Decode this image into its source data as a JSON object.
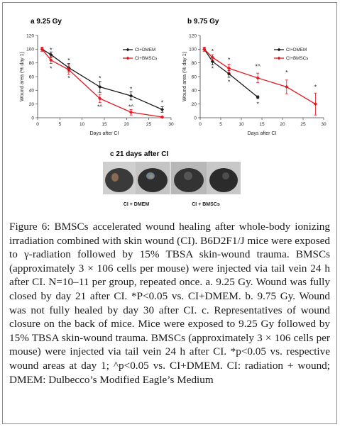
{
  "figure": {
    "caption_label": "Figure 6:",
    "caption_text": " BMSCs accelerated wound healing after whole-body ionizing irradiation combined with skin wound (CI). B6D2F1/J mice were exposed to γ-radiation followed by 15% TBSA skin-wound trauma. BMSCs (approximately 3 × 106 cells per mouse) were injected via tail vein 24 h after CI. N=10–11 per group, repeated once. a. 9.25 Gy. Wound was fully closed by day 21 after CI. *P<0.05 vs. CI+DMEM. b. 9.75 Gy. Wound was not fully healed by day 30 after CI. c. Representatives of wound closure on the back of mice. Mice were exposed to 9.25 Gy followed by 15% TBSA skin-wound trauma. BMSCs (approximately 3 × 106 cells per mouse) were injected via tail vein 24 h after CI. *p<0.05 vs. respective wound areas at day 1; ^p<0.05 vs. CI+DMEM. CI: radiation + wound; DMEM: Dulbecco’s Modified Eagle’s Medium"
  },
  "photo_panel": {
    "title": "c  21 days after CI",
    "label_left": "CI + DMEM",
    "label_right": "CI + BMSCs"
  },
  "colors": {
    "dmem": "#1a1a1a",
    "bmsc": "#e8141c"
  },
  "chart_data": [
    {
      "type": "line",
      "panel": "a",
      "title": "a  9.25 Gy",
      "xlabel": "Days after CI",
      "ylabel": "Wound area (% day 1)",
      "xlim": [
        0,
        30
      ],
      "ylim": [
        0,
        120
      ],
      "xticks": [
        0,
        5,
        10,
        15,
        20,
        25,
        30
      ],
      "yticks": [
        0,
        20,
        40,
        60,
        80,
        100,
        120
      ],
      "legend": "top-right",
      "series": [
        {
          "name": "CI+DMEM",
          "color": "#1a1a1a",
          "marker": "diamond",
          "x": [
            1,
            3,
            7,
            14,
            21,
            28
          ],
          "y": [
            100,
            92,
            73,
            45,
            32,
            12
          ],
          "err": [
            3,
            4,
            6,
            8,
            6,
            4
          ]
        },
        {
          "name": "CI+BMSCs",
          "color": "#e8141c",
          "marker": "diamond",
          "x": [
            1,
            3,
            7,
            14,
            21,
            28
          ],
          "y": [
            100,
            84,
            70,
            28,
            8,
            1
          ],
          "err": [
            3,
            5,
            7,
            6,
            4,
            1
          ]
        }
      ],
      "annotations": [
        {
          "x": 3,
          "y": 99,
          "text": "*"
        },
        {
          "x": 3,
          "y": 72,
          "text": "*"
        },
        {
          "x": 7,
          "y": 84,
          "text": "*"
        },
        {
          "x": 7,
          "y": 58,
          "text": "*"
        },
        {
          "x": 14,
          "y": 58,
          "text": "*"
        },
        {
          "x": 14,
          "y": 16,
          "text": "*^"
        },
        {
          "x": 21,
          "y": 42,
          "text": "*"
        },
        {
          "x": 21,
          "y": 16,
          "text": "*^"
        },
        {
          "x": 28,
          "y": 22,
          "text": "*"
        }
      ]
    },
    {
      "type": "line",
      "panel": "b",
      "title": "b  9.75 Gy",
      "xlabel": "Days after CI",
      "ylabel": "Wound area (% day 1)",
      "xlim": [
        0,
        30
      ],
      "ylim": [
        0,
        120
      ],
      "xticks": [
        0,
        5,
        10,
        15,
        20,
        25,
        30
      ],
      "yticks": [
        0,
        20,
        40,
        60,
        80,
        100,
        120
      ],
      "legend": "top-right",
      "series": [
        {
          "name": "CI+DMEM",
          "color": "#1a1a1a",
          "marker": "diamond",
          "x": [
            1,
            3,
            7,
            14
          ],
          "y": [
            100,
            82,
            64,
            30
          ],
          "err": [
            3,
            5,
            5,
            2
          ]
        },
        {
          "name": "CI+BMSCs",
          "color": "#e8141c",
          "marker": "diamond",
          "x": [
            1,
            3,
            7,
            14,
            21,
            28
          ],
          "y": [
            100,
            88,
            72,
            58,
            45,
            20
          ],
          "err": [
            3,
            4,
            6,
            7,
            10,
            16
          ]
        }
      ],
      "annotations": [
        {
          "x": 3,
          "y": 97,
          "text": "*"
        },
        {
          "x": 3,
          "y": 72,
          "text": "*"
        },
        {
          "x": 7,
          "y": 85,
          "text": "*"
        },
        {
          "x": 7,
          "y": 52,
          "text": "*"
        },
        {
          "x": 14,
          "y": 75,
          "text": "*^"
        },
        {
          "x": 14,
          "y": 20,
          "text": "*"
        },
        {
          "x": 21,
          "y": 66,
          "text": "*"
        },
        {
          "x": 28,
          "y": 45,
          "text": "*"
        }
      ]
    }
  ]
}
